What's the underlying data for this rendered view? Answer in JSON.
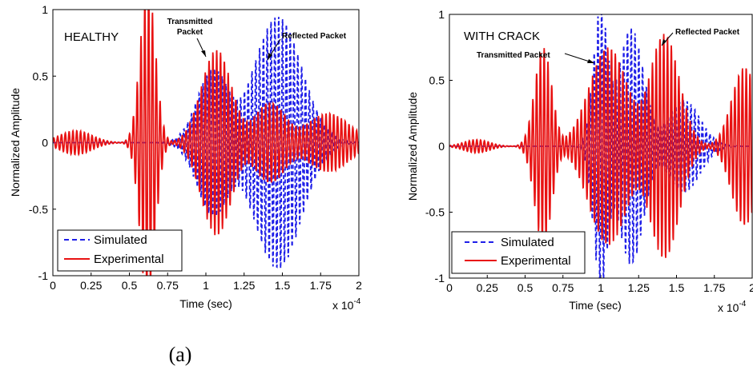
{
  "caption": "(a)",
  "colors": {
    "simulated": "#1f1fe8",
    "experimental": "#e81212"
  },
  "chart_data": [
    {
      "type": "line",
      "title": "HEALTHY",
      "xlabel": "Time (sec)",
      "ylabel": "Normalized Amplitude",
      "x_multiplier": "x 10",
      "x_multiplier_exp": "-4",
      "xlim": [
        0,
        2
      ],
      "ylim": [
        -1,
        1
      ],
      "xticks": [
        "0",
        "0.25",
        "0.5",
        "0.75",
        "1",
        "1.25",
        "1.5",
        "1.75",
        "2"
      ],
      "yticks": [
        "1",
        "0.5",
        "0",
        "-0.5",
        "-1"
      ],
      "legend": {
        "position": "lower-left",
        "entries": [
          "Simulated",
          "Experimental"
        ]
      },
      "annotations": [
        {
          "text": [
            "Transmitted",
            "Packet"
          ]
        },
        {
          "text": [
            "Reflected Packet"
          ]
        }
      ],
      "series": [
        {
          "name": "Simulated",
          "style": "dashed",
          "packets": [
            {
              "center": 1.05,
              "width": 0.15,
              "amp": 0.55,
              "freq": 40
            },
            {
              "center": 1.47,
              "width": 0.22,
              "amp": 0.95,
              "freq": 40
            }
          ]
        },
        {
          "name": "Experimental",
          "style": "solid",
          "packets": [
            {
              "center": 0.15,
              "width": 0.15,
              "amp": 0.09,
              "freq": 40
            },
            {
              "center": 0.62,
              "width": 0.07,
              "amp": 1.2,
              "freq": 40
            },
            {
              "center": 1.07,
              "width": 0.14,
              "amp": 0.7,
              "freq": 40
            },
            {
              "center": 1.42,
              "width": 0.15,
              "amp": 0.3,
              "freq": 40
            },
            {
              "center": 1.8,
              "width": 0.2,
              "amp": 0.22,
              "freq": 40
            }
          ]
        }
      ]
    },
    {
      "type": "line",
      "title": "WITH CRACK",
      "xlabel": "Time (sec)",
      "ylabel": "Normalized Amplitude",
      "x_multiplier": "x 10",
      "x_multiplier_exp": "-4",
      "xlim": [
        0,
        2
      ],
      "ylim": [
        -1,
        1
      ],
      "xticks": [
        "0",
        "0.25",
        "0.5",
        "0.75",
        "1",
        "1.25",
        "1.5",
        "1.75",
        "2"
      ],
      "yticks": [
        "1",
        "0.5",
        "0",
        "-0.5",
        "-1"
      ],
      "legend": {
        "position": "lower-left",
        "entries": [
          "Simulated",
          "Experimental"
        ]
      },
      "annotations": [
        {
          "text": [
            "Transmitted Packet"
          ]
        },
        {
          "text": [
            "Reflected Packet"
          ]
        }
      ],
      "series": [
        {
          "name": "Simulated",
          "style": "dashed",
          "packets": [
            {
              "center": 1.0,
              "width": 0.07,
              "amp": 1.05,
              "freq": 40
            },
            {
              "center": 1.2,
              "width": 0.12,
              "amp": 0.9,
              "freq": 40
            },
            {
              "center": 1.55,
              "width": 0.15,
              "amp": 0.35,
              "freq": 40
            }
          ]
        },
        {
          "name": "Experimental",
          "style": "solid",
          "packets": [
            {
              "center": 0.18,
              "width": 0.12,
              "amp": 0.05,
              "freq": 40
            },
            {
              "center": 0.62,
              "width": 0.08,
              "amp": 0.75,
              "freq": 40
            },
            {
              "center": 1.05,
              "width": 0.18,
              "amp": 0.75,
              "freq": 40
            },
            {
              "center": 1.42,
              "width": 0.14,
              "amp": 0.85,
              "freq": 40
            },
            {
              "center": 1.95,
              "width": 0.12,
              "amp": 0.6,
              "freq": 40
            }
          ]
        }
      ]
    }
  ]
}
